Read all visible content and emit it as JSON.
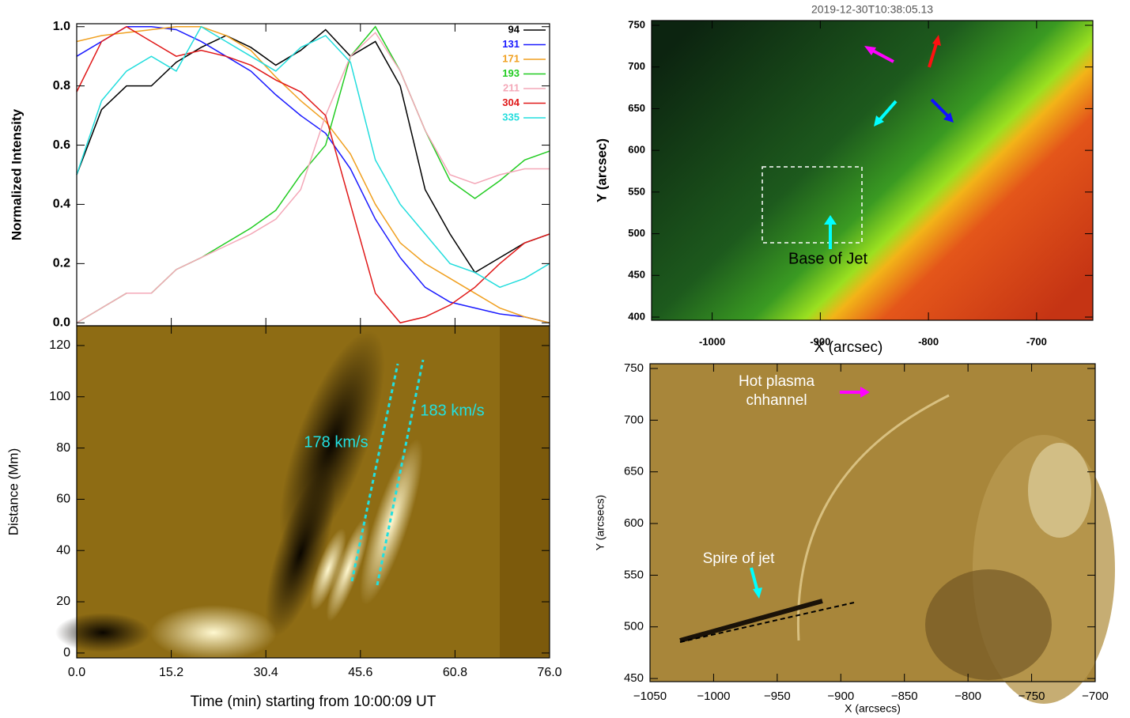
{
  "chart_data": [
    {
      "type": "line",
      "y_label": "Normalized Intensity",
      "x": [
        0,
        4,
        8,
        12,
        16,
        20,
        24,
        28,
        32,
        36,
        40,
        44,
        48,
        52,
        56,
        60,
        64,
        68,
        72,
        76
      ],
      "xlim": [
        0,
        76
      ],
      "ylim": [
        -0.01,
        1.01
      ],
      "yticks": [
        {
          "value": 0,
          "label": "0.0"
        },
        {
          "value": 0.2,
          "label": "0.2"
        },
        {
          "value": 0.4,
          "label": "0.4"
        },
        {
          "value": 0.6,
          "label": "0.6"
        },
        {
          "value": 0.8,
          "label": "0.8"
        },
        {
          "value": 1,
          "label": "1.0"
        }
      ],
      "legend": "upper right",
      "series": [
        {
          "name": "94",
          "color": "#000000",
          "values": [
            0.5,
            0.72,
            0.8,
            0.8,
            0.88,
            0.93,
            0.97,
            0.93,
            0.87,
            0.92,
            0.99,
            0.9,
            0.95,
            0.8,
            0.45,
            0.3,
            0.17,
            0.22,
            0.27,
            0.3
          ]
        },
        {
          "name": "131",
          "color": "#1a1aff",
          "values": [
            0.9,
            0.95,
            1.0,
            1.0,
            0.99,
            0.95,
            0.9,
            0.85,
            0.77,
            0.7,
            0.64,
            0.52,
            0.35,
            0.22,
            0.12,
            0.07,
            0.05,
            0.03,
            0.02,
            0.0
          ]
        },
        {
          "name": "171",
          "color": "#f0a020",
          "values": [
            0.95,
            0.97,
            0.98,
            0.99,
            1.0,
            1.0,
            0.97,
            0.92,
            0.83,
            0.75,
            0.68,
            0.57,
            0.4,
            0.27,
            0.2,
            0.15,
            0.1,
            0.05,
            0.02,
            0.0
          ]
        },
        {
          "name": "193",
          "color": "#22cc22",
          "values": [
            0.0,
            0.05,
            0.1,
            0.1,
            0.18,
            0.22,
            0.27,
            0.32,
            0.38,
            0.5,
            0.6,
            0.9,
            1.0,
            0.85,
            0.65,
            0.48,
            0.42,
            0.48,
            0.55,
            0.58
          ]
        },
        {
          "name": "211",
          "color": "#f4a8b8",
          "values": [
            0.0,
            0.05,
            0.1,
            0.1,
            0.18,
            0.22,
            0.26,
            0.3,
            0.35,
            0.45,
            0.7,
            0.9,
            0.98,
            0.85,
            0.65,
            0.5,
            0.47,
            0.5,
            0.52,
            0.52
          ]
        },
        {
          "name": "304",
          "color": "#e01818",
          "values": [
            0.78,
            0.95,
            1.0,
            0.95,
            0.9,
            0.92,
            0.9,
            0.87,
            0.82,
            0.78,
            0.7,
            0.4,
            0.1,
            0.0,
            0.02,
            0.06,
            0.12,
            0.2,
            0.27,
            0.3
          ]
        },
        {
          "name": "335",
          "color": "#22dddd",
          "values": [
            0.5,
            0.75,
            0.85,
            0.9,
            0.85,
            1.0,
            0.95,
            0.9,
            0.85,
            0.93,
            0.97,
            0.88,
            0.55,
            0.4,
            0.3,
            0.2,
            0.17,
            0.12,
            0.15,
            0.2
          ]
        }
      ]
    },
    {
      "type": "image",
      "x_label": "Time (min) starting from 10:00:09 UT",
      "y_label": "Distance (Mm)",
      "xlim": [
        0,
        76
      ],
      "ylim": [
        -1.9,
        127.7
      ],
      "xticks": [
        {
          "value": 0,
          "label": "0.0"
        },
        15.2,
        30.4,
        45.6,
        60.8,
        {
          "value": 76,
          "label": "76.0"
        }
      ],
      "yticks": [
        0,
        20,
        40,
        60,
        80,
        100,
        120
      ],
      "annotations": [
        "178 km/s",
        "183 km/s"
      ]
    },
    {
      "type": "image",
      "title": "2019-12-30T10:38:05.13",
      "x_label": "X (arcsec)",
      "y_label": "Y (arcsec)",
      "xlim": [
        -1056,
        -648
      ],
      "ylim": [
        396.2,
        755.7
      ],
      "xticks": [
        -1000,
        -900,
        -800,
        -700
      ],
      "yticks": [
        400,
        450,
        500,
        550,
        600,
        650,
        700,
        750
      ],
      "annotations": [
        "Base of Jet"
      ]
    },
    {
      "type": "image",
      "x_label": "X (arcsecs)",
      "y_label": "Y (arcsecs)",
      "xlim": [
        -1050,
        -700
      ],
      "ylim": [
        447,
        754.6
      ],
      "xticks": [
        {
          "value": -1050,
          "label": "−1050"
        },
        {
          "value": -1000,
          "label": "−1000"
        },
        {
          "value": -950,
          "label": "−950"
        },
        {
          "value": -900,
          "label": "−900"
        },
        {
          "value": -850,
          "label": "−850"
        },
        {
          "value": -800,
          "label": "−800"
        },
        {
          "value": -750,
          "label": "−750"
        },
        {
          "value": -700,
          "label": "−700"
        }
      ],
      "yticks": [
        450,
        500,
        550,
        600,
        650,
        700,
        750
      ],
      "annotations": [
        "Hot plasma",
        "chhannel",
        "Spire of jet"
      ]
    }
  ]
}
